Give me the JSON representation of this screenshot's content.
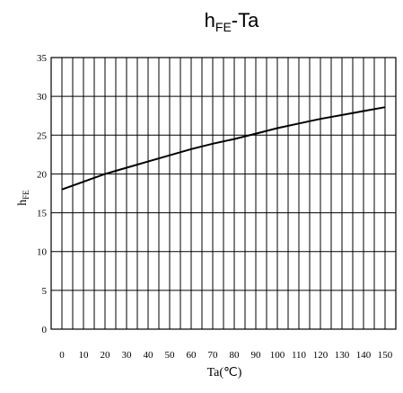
{
  "chart_data": {
    "type": "line",
    "title": {
      "main": "h",
      "sub": "FE",
      "tail": "-Ta"
    },
    "xlabel": "Ta(℃)",
    "ylabel": {
      "main": "h",
      "sub": "FE"
    },
    "xlim": [
      -5,
      155
    ],
    "ylim": [
      0,
      35
    ],
    "x_ticks": [
      "0",
      "10",
      "20",
      "30",
      "40",
      "50",
      "60",
      "70",
      "80",
      "90",
      "100",
      "110",
      "120",
      "130",
      "140",
      "150"
    ],
    "y_ticks": [
      "0",
      "5",
      "10",
      "15",
      "20",
      "25",
      "30",
      "35"
    ],
    "x_grid_step": 5,
    "y_grid_step": 5,
    "grid": true,
    "series": [
      {
        "x": [
          0,
          10,
          20,
          30,
          40,
          50,
          60,
          70,
          80,
          90,
          100,
          110,
          120,
          130,
          140,
          150
        ],
        "y": [
          18.0,
          19.0,
          20.0,
          20.8,
          21.6,
          22.4,
          23.2,
          23.9,
          24.5,
          25.2,
          25.9,
          26.5,
          27.1,
          27.6,
          28.1,
          28.6
        ]
      }
    ],
    "colors": {
      "line": "#000000",
      "grid": "#000000",
      "background": "#ffffff"
    }
  }
}
